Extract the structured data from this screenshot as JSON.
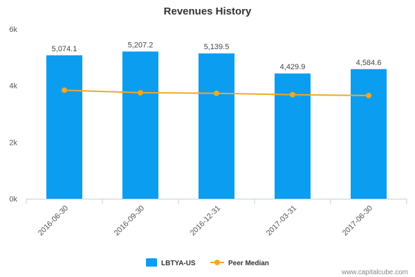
{
  "chart_data": {
    "type": "bar",
    "title": "Revenues History",
    "categories": [
      "2016-06-30",
      "2016-09-30",
      "2016-12-31",
      "2017-03-31",
      "2017-06-30"
    ],
    "series": [
      {
        "name": "LBTYA-US",
        "type": "bar",
        "color": "#0b9ef0",
        "values": [
          5074.1,
          5207.2,
          5139.5,
          4429.9,
          4584.6
        ],
        "labels": [
          "5,074.1",
          "5,207.2",
          "5,139.5",
          "4,429.9",
          "4,584.6"
        ]
      },
      {
        "name": "Peer Median",
        "type": "line",
        "color": "#f5a623",
        "values": [
          3840,
          3750,
          3730,
          3680,
          3650
        ]
      }
    ],
    "ylim": [
      0,
      6000
    ],
    "yticks": [
      {
        "value": 0,
        "label": "0k"
      },
      {
        "value": 2000,
        "label": "2k"
      },
      {
        "value": 4000,
        "label": "4k"
      },
      {
        "value": 6000,
        "label": "6k"
      }
    ],
    "grid": false,
    "legend": "bottom-center"
  },
  "credit": "www.capitalcube.com"
}
